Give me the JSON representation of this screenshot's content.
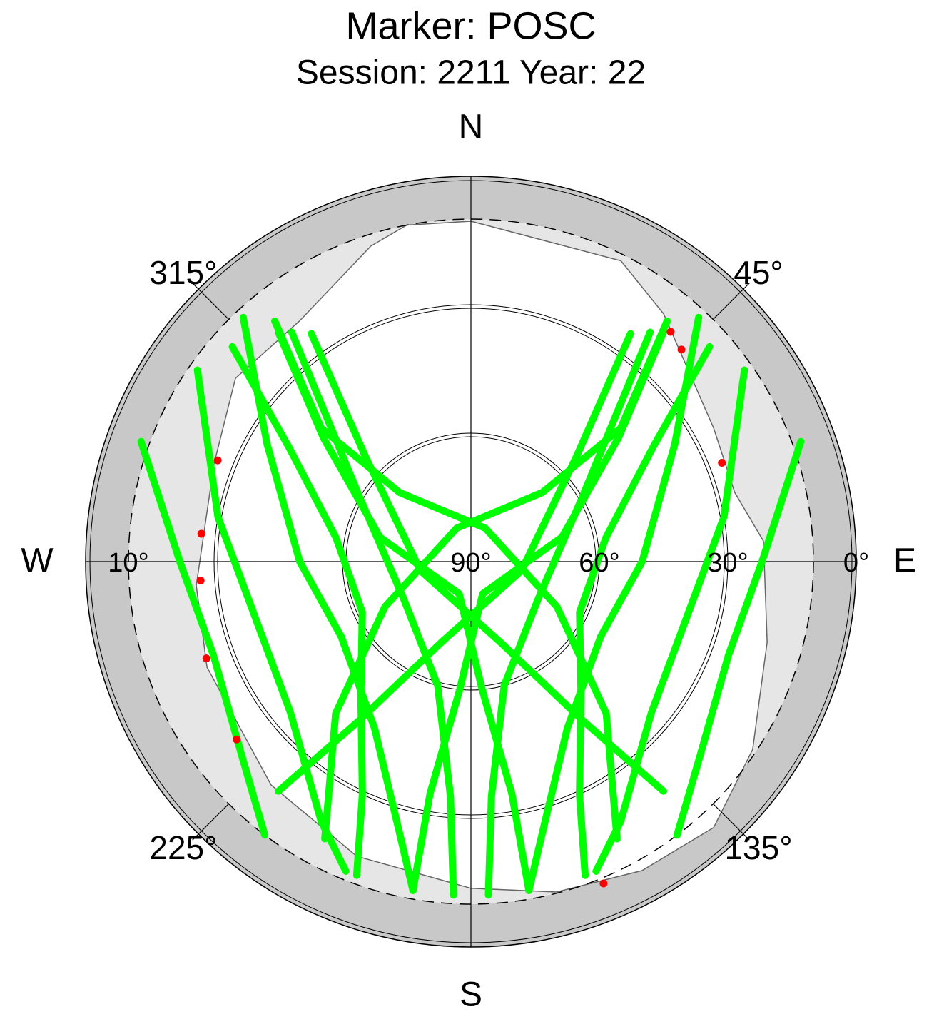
{
  "chart_data": {
    "type": "skyplot",
    "title": "Marker: POSC",
    "subtitle": "Session: 2211 Year: 22",
    "rlim": [
      90,
      0
    ],
    "rticks": [
      {
        "value": 0,
        "label": "0°"
      },
      {
        "value": 30,
        "label": "30°"
      },
      {
        "value": 60,
        "label": "60°"
      },
      {
        "value": 90,
        "label": "90°"
      }
    ],
    "cutoff": {
      "value": 10,
      "label": "10°"
    },
    "azimuth_ticks": [
      {
        "value": 0,
        "label": "N"
      },
      {
        "value": 45,
        "label": "45°"
      },
      {
        "value": 90,
        "label": "E"
      },
      {
        "value": 135,
        "label": "135°"
      },
      {
        "value": 180,
        "label": "S"
      },
      {
        "value": 225,
        "label": "225°"
      },
      {
        "value": 270,
        "label": "W"
      },
      {
        "value": 315,
        "label": "315°"
      }
    ],
    "mask": {
      "color": "#ffffff",
      "azimuth": [
        0,
        26.5,
        37.9,
        61.2,
        75.3,
        86,
        105.2,
        123.7,
        137.6,
        151,
        165.5,
        180,
        201.2,
        221.8,
        248.2,
        265,
        290.8,
        307.9,
        324.5,
        342.4,
        349.2
      ],
      "elevation": [
        10.5,
        11.5,
        16.7,
        25.3,
        26.3,
        21.5,
        18.3,
        10.9,
        5.9,
        7.5,
        10.3,
        13.7,
        16.2,
        20,
        23.6,
        25.6,
        25.8,
        20.3,
        21,
        12.7,
        10
      ]
    },
    "track_color": "#00ff00",
    "tracks": [
      {
        "azimuth": [
          39.2,
          48.3,
          45.9,
          337,
          242.3,
          221.7,
          207.8
        ],
        "elevation": [
          17.5,
          43.2,
          66.8,
          81.5,
          67.3,
          42.5,
          16.8
        ]
      },
      {
        "azimuth": [
          320.8,
          311.7,
          314.1,
          23,
          117.7,
          138.3,
          152.2
        ],
        "elevation": [
          17.5,
          43.2,
          66.8,
          81.5,
          67.3,
          42.5,
          16.8
        ]
      },
      {
        "azimuth": [
          40,
          50,
          75,
          160,
          185,
          190,
          190
        ],
        "elevation": [
          20,
          45,
          68,
          82,
          60,
          35,
          12
        ]
      },
      {
        "azimuth": [
          320,
          310,
          285,
          200,
          175,
          170,
          170
        ],
        "elevation": [
          20,
          45,
          68,
          82,
          60,
          35,
          12
        ]
      },
      {
        "azimuth": [
          43,
          60,
          90,
          120,
          150,
          165,
          170
        ],
        "elevation": [
          12,
          35,
          50,
          55,
          45,
          25,
          12
        ]
      },
      {
        "azimuth": [
          317,
          300,
          270,
          240,
          210,
          195,
          190
        ],
        "elevation": [
          12,
          35,
          50,
          55,
          45,
          25,
          12
        ]
      },
      {
        "azimuth": [
          55,
          80,
          105,
          130,
          150,
          158
        ],
        "elevation": [
          12,
          30,
          38,
          35,
          20,
          12
        ]
      },
      {
        "azimuth": [
          305,
          280,
          255,
          230,
          210,
          202
        ],
        "elevation": [
          12,
          30,
          38,
          35,
          20,
          12
        ]
      },
      {
        "azimuth": [
          35,
          45,
          100,
          200,
          215,
          220
        ],
        "elevation": [
          25,
          55,
          78,
          70,
          45,
          20
        ]
      },
      {
        "azimuth": [
          325,
          315,
          260,
          160,
          145,
          140
        ],
        "elevation": [
          25,
          55,
          78,
          70,
          45,
          20
        ]
      },
      {
        "azimuth": [
          70,
          90,
          110,
          130,
          143
        ],
        "elevation": [
          8,
          22,
          26,
          20,
          10
        ]
      },
      {
        "azimuth": [
          290,
          270,
          250,
          230,
          217
        ],
        "elevation": [
          8,
          22,
          26,
          20,
          10
        ]
      },
      {
        "azimuth": [
          38,
          60,
          120,
          165,
          175,
          177
        ],
        "elevation": [
          22,
          60,
          72,
          60,
          35,
          12
        ]
      },
      {
        "azimuth": [
          322,
          300,
          240,
          195,
          185,
          183
        ],
        "elevation": [
          22,
          60,
          72,
          60,
          35,
          12
        ]
      },
      {
        "azimuth": [
          48,
          58,
          80,
          115,
          140,
          155,
          160
        ],
        "elevation": [
          15,
          40,
          58,
          62,
          50,
          30,
          12
        ]
      },
      {
        "azimuth": [
          312,
          302,
          280,
          245,
          220,
          205,
          200
        ],
        "elevation": [
          15,
          40,
          58,
          62,
          50,
          30,
          12
        ]
      }
    ],
    "flags": {
      "color": "#ff0000",
      "azimuth": [
        41,
        44.8,
        68.5,
        157.6,
        232.8,
        249.9,
        266,
        275.9,
        291.8
      ],
      "elevation": [
        18.9,
        20.2,
        27,
        8.7,
        21.3,
        24.2,
        26.7,
        26.7,
        26.3
      ]
    }
  }
}
